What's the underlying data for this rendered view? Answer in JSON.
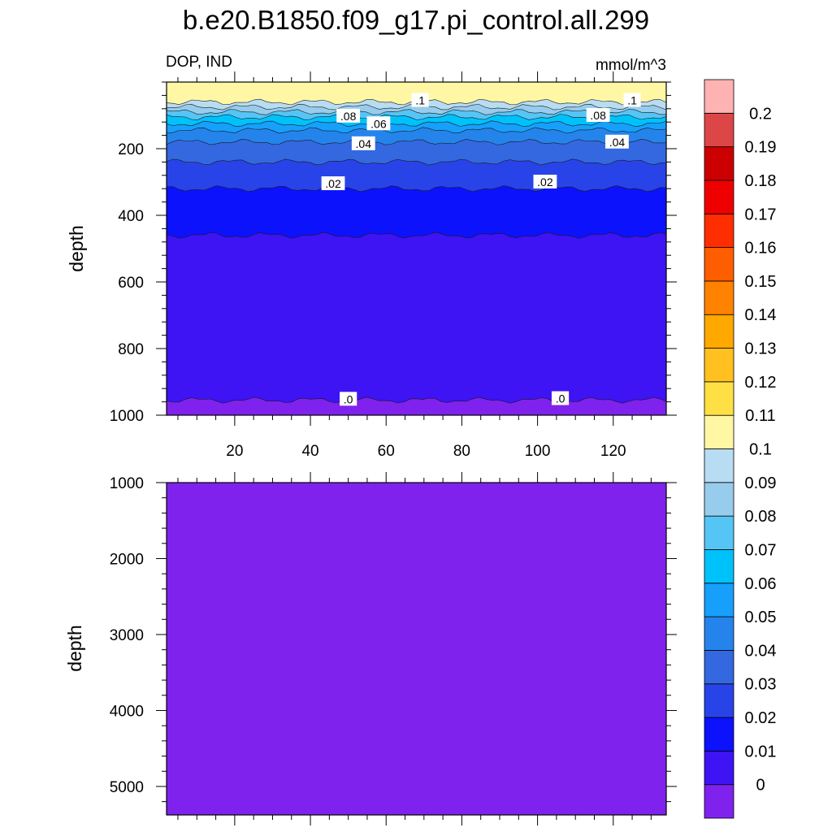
{
  "chart_data": {
    "type": "heatmap",
    "title": "b.e20.B1850.f09_g17.pi_control.all.299",
    "left_label": "DOP, IND",
    "units": "mmol/m^3",
    "x_ticks": [
      "20",
      "40",
      "60",
      "80",
      "100",
      "120"
    ],
    "x_range": [
      2,
      134
    ],
    "panels": [
      {
        "name": "upper",
        "ylabel": "depth",
        "ylim": [
          0,
          1000
        ],
        "y_tick_values": [
          200,
          400,
          600,
          800,
          1000
        ],
        "y_ticks": [
          "200",
          "400",
          "600",
          "800",
          "1000"
        ],
        "layers": [
          {
            "top": 0,
            "bottom": 60,
            "value": 0.105
          },
          {
            "top": 60,
            "bottom": 75,
            "value": 0.095
          },
          {
            "top": 75,
            "bottom": 90,
            "value": 0.085
          },
          {
            "top": 90,
            "bottom": 105,
            "value": 0.075
          },
          {
            "top": 105,
            "bottom": 125,
            "value": 0.065
          },
          {
            "top": 125,
            "bottom": 145,
            "value": 0.055
          },
          {
            "top": 145,
            "bottom": 180,
            "value": 0.045
          },
          {
            "top": 180,
            "bottom": 240,
            "value": 0.035
          },
          {
            "top": 240,
            "bottom": 320,
            "value": 0.025
          },
          {
            "top": 320,
            "bottom": 460,
            "value": 0.015
          },
          {
            "top": 460,
            "bottom": 955,
            "value": 0.005
          },
          {
            "top": 955,
            "bottom": 1000,
            "value": -0.001
          }
        ],
        "contour_labels": [
          {
            "text": ".1",
            "x": 69,
            "depth": 55
          },
          {
            "text": ".1",
            "x": 125,
            "depth": 55
          },
          {
            "text": ".08",
            "x": 50,
            "depth": 102
          },
          {
            "text": ".08",
            "x": 116,
            "depth": 100
          },
          {
            "text": ".06",
            "x": 58,
            "depth": 125
          },
          {
            "text": ".04",
            "x": 54,
            "depth": 185
          },
          {
            "text": ".04",
            "x": 121,
            "depth": 180
          },
          {
            "text": ".02",
            "x": 46,
            "depth": 305
          },
          {
            "text": ".02",
            "x": 102,
            "depth": 300
          },
          {
            "text": ".0",
            "x": 50,
            "depth": 952
          },
          {
            "text": ".0",
            "x": 106,
            "depth": 950
          }
        ]
      },
      {
        "name": "lower",
        "ylabel": "depth",
        "ylim": [
          1000,
          5375
        ],
        "y_tick_values": [
          1000,
          2000,
          3000,
          4000,
          5000
        ],
        "y_ticks": [
          "1000",
          "2000",
          "3000",
          "4000",
          "5000"
        ],
        "fill_value": -0.001
      }
    ],
    "colorbar": {
      "labels": [
        "0",
        "0.01",
        "0.02",
        "0.03",
        "0.04",
        "0.05",
        "0.06",
        "0.07",
        "0.08",
        "0.09",
        "0.1",
        "0.11",
        "0.12",
        "0.13",
        "0.14",
        "0.15",
        "0.16",
        "0.17",
        "0.18",
        "0.19",
        "0.2"
      ],
      "levels": [
        0,
        0.01,
        0.02,
        0.03,
        0.04,
        0.05,
        0.06,
        0.07,
        0.08,
        0.09,
        0.1,
        0.11,
        0.12,
        0.13,
        0.14,
        0.15,
        0.16,
        0.17,
        0.18,
        0.19,
        0.2
      ],
      "colors": [
        "#7f22ee",
        "#3e13f4",
        "#0c12fc",
        "#2844e8",
        "#3468e0",
        "#2584ec",
        "#16a0fc",
        "#00c2fb",
        "#55c5f5",
        "#98ccec",
        "#b8dcf2",
        "#fff7a4",
        "#ffe044",
        "#ffc020",
        "#ffa800",
        "#ff8200",
        "#ff5e00",
        "#ff2e00",
        "#ef0000",
        "#cc0000",
        "#dd4646",
        "#ffb2b2"
      ]
    }
  }
}
